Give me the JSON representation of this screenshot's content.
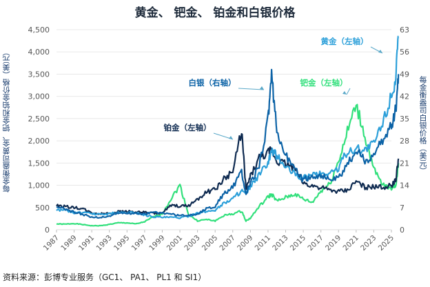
{
  "chart_data": {
    "type": "line",
    "title": "黄金、 钯金、 铂金和白银价格",
    "ylabel": "每金衡盎司黄金、钯金和铂金价格（美元）",
    "y2label": "每金衡盎司白银价格（美元）",
    "source": "资料来源：彭博专业服务（GC1、 PA1、 PL1 和 SI1）",
    "xlim": [
      1987,
      2026
    ],
    "ylim": [
      0,
      4500
    ],
    "y2lim": [
      0,
      63
    ],
    "yticks": [
      "0",
      "500",
      "1,000",
      "1,500",
      "2,000",
      "2,500",
      "3,000",
      "3,500",
      "4,000",
      "4,500"
    ],
    "yticks_values": [
      0,
      500,
      1000,
      1500,
      2000,
      2500,
      3000,
      3500,
      4000,
      4500
    ],
    "y2ticks": [
      "0",
      "7",
      "14",
      "21",
      "28",
      "35",
      "42",
      "49",
      "56",
      "63"
    ],
    "y2ticks_values": [
      0,
      7,
      14,
      21,
      28,
      35,
      42,
      49,
      56,
      63
    ],
    "xticks": [
      "1987",
      "1989",
      "1991",
      "1993",
      "1995",
      "1997",
      "1999",
      "2001",
      "2003",
      "2005",
      "2007",
      "2009",
      "2011",
      "2013",
      "2015",
      "2017",
      "2019",
      "2021",
      "2023",
      "2025"
    ],
    "grid": true,
    "x": [
      1987,
      1988,
      1989,
      1990,
      1991,
      1992,
      1993,
      1994,
      1995,
      1996,
      1997,
      1998,
      1999,
      2000,
      2001,
      2002,
      2003,
      2004,
      2005,
      2006,
      2007,
      2008,
      2008.5,
      2009,
      2010,
      2011,
      2011.4,
      2012,
      2013,
      2014,
      2015,
      2016,
      2017,
      2018,
      2019,
      2020,
      2021,
      2022,
      2023,
      2024,
      2025,
      2025.5,
      2025.8
    ],
    "series": [
      {
        "name": "黄金（左轴）",
        "axis": "left",
        "color": "#2b9fd9",
        "values": [
          450,
          440,
          380,
          385,
          360,
          345,
          360,
          385,
          385,
          390,
          330,
          295,
          280,
          280,
          270,
          310,
          365,
          410,
          445,
          600,
          700,
          880,
          800,
          970,
          1225,
          1500,
          1750,
          1670,
          1410,
          1265,
          1160,
          1250,
          1260,
          1270,
          1390,
          1770,
          1800,
          1800,
          1940,
          2390,
          3050,
          3400,
          4350
        ]
      },
      {
        "name": "白银（右轴）",
        "axis": "right",
        "color": "#0b62a6",
        "values": [
          7,
          6.5,
          5.5,
          4.8,
          4,
          3.9,
          4.3,
          5.3,
          5.2,
          5.2,
          4.9,
          5.5,
          5.2,
          5,
          4.4,
          4.6,
          4.9,
          6.7,
          7.3,
          11.5,
          13.4,
          18,
          11,
          14.7,
          20,
          35,
          48,
          31,
          23.8,
          19,
          15.7,
          17,
          17,
          15.7,
          16.2,
          20.5,
          25,
          21.7,
          23.4,
          28,
          33,
          38,
          49
        ]
      },
      {
        "name": "铂金（左轴）",
        "axis": "left",
        "color": "#0e2a50",
        "values": [
          550,
          520,
          500,
          470,
          375,
          360,
          375,
          405,
          420,
          395,
          395,
          370,
          375,
          545,
          530,
          540,
          690,
          845,
          900,
          1140,
          1300,
          2250,
          900,
          1200,
          1610,
          1720,
          1800,
          1550,
          1490,
          1380,
          1050,
          990,
          950,
          880,
          860,
          880,
          1090,
          960,
          960,
          955,
          1000,
          1100,
          1600
        ]
      },
      {
        "name": "钯金（左轴）",
        "axis": "left",
        "color": "#32e07c",
        "values": [
          130,
          125,
          140,
          115,
          90,
          90,
          120,
          155,
          155,
          130,
          180,
          290,
          360,
          700,
          1000,
          340,
          200,
          230,
          200,
          320,
          355,
          420,
          200,
          260,
          525,
          730,
          800,
          640,
          725,
          800,
          690,
          610,
          870,
          1030,
          1540,
          2200,
          2800,
          2100,
          1350,
          1000,
          950,
          1000,
          1500
        ]
      }
    ],
    "annotations": [
      {
        "text": "黄金（左轴）",
        "series": "黄金（左轴）",
        "color": "#2b9fd9"
      },
      {
        "text": "白银（右轴）",
        "series": "白银（右轴）",
        "color": "#0b62a6"
      },
      {
        "text": "钯金（左轴）",
        "series": "钯金（左轴）",
        "color": "#32e07c"
      },
      {
        "text": "铂金（左轴）",
        "series": "铂金（左轴）",
        "color": "#0e2a50"
      }
    ]
  }
}
